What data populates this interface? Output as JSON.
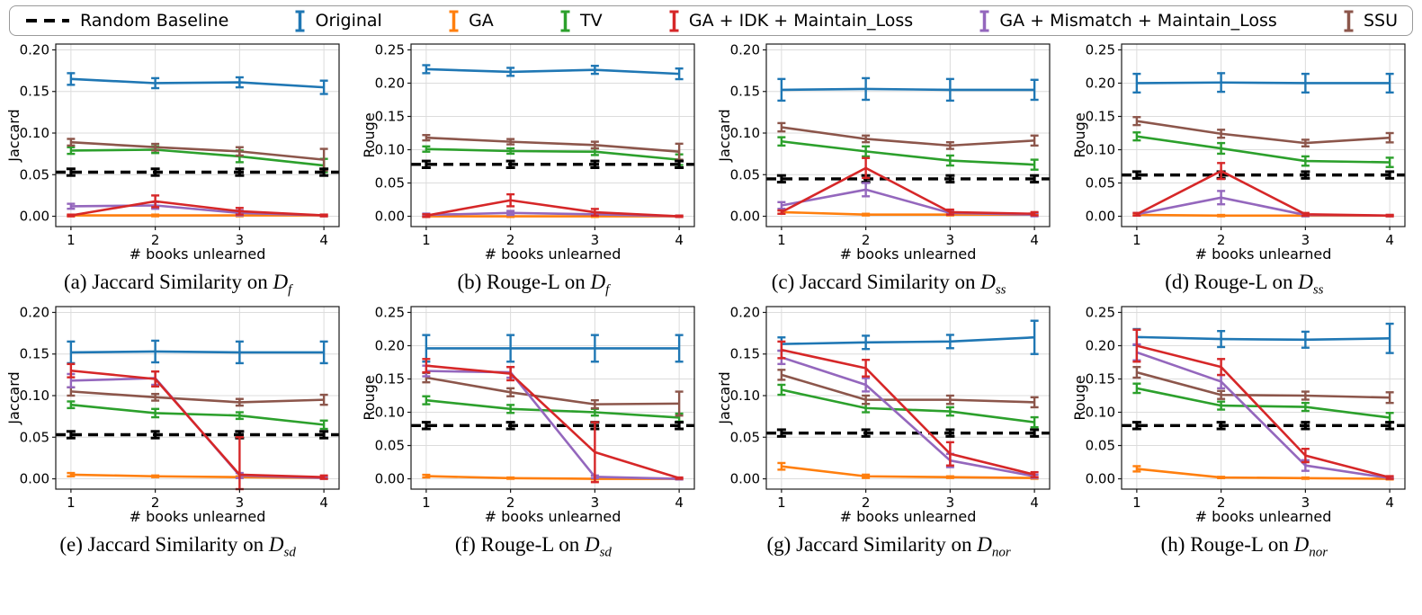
{
  "legend": {
    "items": [
      {
        "label": "Random Baseline",
        "color": "#000000",
        "marker": "dashed-line"
      },
      {
        "label": "Original",
        "color": "#1f77b4",
        "marker": "errorbar"
      },
      {
        "label": "GA",
        "color": "#ff7f0e",
        "marker": "errorbar"
      },
      {
        "label": "TV",
        "color": "#2ca02c",
        "marker": "errorbar"
      },
      {
        "label": "GA + IDK + Maintain_Loss",
        "color": "#d62728",
        "marker": "errorbar"
      },
      {
        "label": "GA + Mismatch + Maintain_Loss",
        "color": "#9467bd",
        "marker": "errorbar"
      },
      {
        "label": "SSU",
        "color": "#8c564b",
        "marker": "errorbar"
      }
    ]
  },
  "chart_data": [
    {
      "type": "line",
      "id": "a",
      "caption_prefix": "(a) Jaccard Similarity on ",
      "caption_var": "D",
      "caption_sub": "f",
      "ylabel": "Jaccard",
      "xlabel": "# books unlearned",
      "x": [
        1,
        2,
        3,
        4
      ],
      "ylim": [
        0,
        0.2
      ],
      "yticks": [
        0,
        0.05,
        0.1,
        0.15,
        0.2
      ],
      "series": [
        {
          "name": "Original",
          "values": [
            0.165,
            0.16,
            0.161,
            0.155
          ],
          "err": [
            0.007,
            0.006,
            0.006,
            0.008
          ]
        },
        {
          "name": "GA",
          "values": [
            0.001,
            0.001,
            0.001,
            0.001
          ],
          "err": [
            0.001,
            0.001,
            0.001,
            0.001
          ]
        },
        {
          "name": "TV",
          "values": [
            0.079,
            0.08,
            0.072,
            0.061
          ],
          "err": [
            0.004,
            0.004,
            0.007,
            0.008
          ]
        },
        {
          "name": "SSU",
          "values": [
            0.089,
            0.083,
            0.078,
            0.068
          ],
          "err": [
            0.004,
            0.004,
            0.005,
            0.013
          ]
        },
        {
          "name": "Random Baseline",
          "dashed": true,
          "values": [
            0.053,
            0.053,
            0.053,
            0.053
          ],
          "err": [
            0.004,
            0.004,
            0.004,
            0.004
          ]
        },
        {
          "name": "GA + Mismatch + Maintain_Loss",
          "values": [
            0.012,
            0.013,
            0.004,
            0.001
          ],
          "err": [
            0.003,
            0.004,
            0.003,
            0.001
          ]
        },
        {
          "name": "GA + IDK + Maintain_Loss",
          "values": [
            0.001,
            0.018,
            0.006,
            0.001
          ],
          "err": [
            0.001,
            0.007,
            0.004,
            0.001
          ]
        }
      ]
    },
    {
      "type": "line",
      "id": "b",
      "caption_prefix": "(b) Rouge-L on ",
      "caption_var": "D",
      "caption_sub": "f",
      "ylabel": "Rouge",
      "xlabel": "# books unlearned",
      "x": [
        1,
        2,
        3,
        4
      ],
      "ylim": [
        0,
        0.25
      ],
      "yticks": [
        0,
        0.05,
        0.1,
        0.15,
        0.2,
        0.25
      ],
      "series": [
        {
          "name": "Original",
          "values": [
            0.221,
            0.217,
            0.22,
            0.214
          ],
          "err": [
            0.006,
            0.006,
            0.006,
            0.008
          ]
        },
        {
          "name": "GA",
          "values": [
            0.0,
            0.0,
            0.0,
            0.0
          ],
          "err": [
            0.001,
            0.001,
            0.001,
            0.001
          ]
        },
        {
          "name": "TV",
          "values": [
            0.101,
            0.098,
            0.097,
            0.085
          ],
          "err": [
            0.004,
            0.004,
            0.005,
            0.008
          ]
        },
        {
          "name": "SSU",
          "values": [
            0.118,
            0.112,
            0.107,
            0.097
          ],
          "err": [
            0.004,
            0.004,
            0.005,
            0.012
          ]
        },
        {
          "name": "Random Baseline",
          "dashed": true,
          "values": [
            0.078,
            0.078,
            0.078,
            0.078
          ],
          "err": [
            0.005,
            0.005,
            0.005,
            0.005
          ]
        },
        {
          "name": "GA + Mismatch + Maintain_Loss",
          "values": [
            0.002,
            0.005,
            0.003,
            0.0
          ],
          "err": [
            0.002,
            0.003,
            0.002,
            0.001
          ]
        },
        {
          "name": "GA + IDK + Maintain_Loss",
          "values": [
            0.001,
            0.024,
            0.006,
            0.0
          ],
          "err": [
            0.002,
            0.009,
            0.005,
            0.001
          ]
        }
      ]
    },
    {
      "type": "line",
      "id": "c",
      "caption_prefix": "(c) Jaccard Similarity on ",
      "caption_var": "D",
      "caption_sub": "ss",
      "ylabel": "Jaccard",
      "xlabel": "# books unlearned",
      "x": [
        1,
        2,
        3,
        4
      ],
      "ylim": [
        0,
        0.2
      ],
      "yticks": [
        0,
        0.05,
        0.1,
        0.15,
        0.2
      ],
      "series": [
        {
          "name": "Original",
          "values": [
            0.152,
            0.153,
            0.152,
            0.152
          ],
          "err": [
            0.013,
            0.013,
            0.013,
            0.012
          ]
        },
        {
          "name": "GA",
          "values": [
            0.005,
            0.002,
            0.002,
            0.002
          ],
          "err": [
            0.002,
            0.001,
            0.001,
            0.001
          ]
        },
        {
          "name": "TV",
          "values": [
            0.09,
            0.078,
            0.067,
            0.062
          ],
          "err": [
            0.005,
            0.006,
            0.006,
            0.006
          ]
        },
        {
          "name": "SSU",
          "values": [
            0.107,
            0.093,
            0.085,
            0.091
          ],
          "err": [
            0.005,
            0.004,
            0.004,
            0.006
          ]
        },
        {
          "name": "Random Baseline",
          "dashed": true,
          "values": [
            0.045,
            0.045,
            0.045,
            0.045
          ],
          "err": [
            0.004,
            0.004,
            0.004,
            0.004
          ]
        },
        {
          "name": "GA + Mismatch + Maintain_Loss",
          "values": [
            0.013,
            0.032,
            0.004,
            0.002
          ],
          "err": [
            0.004,
            0.008,
            0.002,
            0.002
          ]
        },
        {
          "name": "GA + IDK + Maintain_Loss",
          "values": [
            0.005,
            0.058,
            0.005,
            0.003
          ],
          "err": [
            0.002,
            0.012,
            0.003,
            0.002
          ]
        }
      ]
    },
    {
      "type": "line",
      "id": "d",
      "caption_prefix": "(d) Rouge-L on ",
      "caption_var": "D",
      "caption_sub": "ss",
      "ylabel": "Rouge",
      "xlabel": "# books unlearned",
      "x": [
        1,
        2,
        3,
        4
      ],
      "ylim": [
        0,
        0.25
      ],
      "yticks": [
        0,
        0.05,
        0.1,
        0.15,
        0.2,
        0.25
      ],
      "series": [
        {
          "name": "Original",
          "values": [
            0.2,
            0.201,
            0.2,
            0.2
          ],
          "err": [
            0.014,
            0.014,
            0.014,
            0.014
          ]
        },
        {
          "name": "GA",
          "values": [
            0.002,
            0.001,
            0.001,
            0.001
          ],
          "err": [
            0.001,
            0.001,
            0.001,
            0.001
          ]
        },
        {
          "name": "TV",
          "values": [
            0.12,
            0.102,
            0.083,
            0.081
          ],
          "err": [
            0.006,
            0.008,
            0.007,
            0.007
          ]
        },
        {
          "name": "SSU",
          "values": [
            0.143,
            0.124,
            0.11,
            0.118
          ],
          "err": [
            0.006,
            0.006,
            0.005,
            0.007
          ]
        },
        {
          "name": "Random Baseline",
          "dashed": true,
          "values": [
            0.062,
            0.062,
            0.062,
            0.062
          ],
          "err": [
            0.005,
            0.005,
            0.005,
            0.005
          ]
        },
        {
          "name": "GA + Mismatch + Maintain_Loss",
          "values": [
            0.003,
            0.028,
            0.002,
            0.001
          ],
          "err": [
            0.002,
            0.01,
            0.002,
            0.001
          ]
        },
        {
          "name": "GA + IDK + Maintain_Loss",
          "values": [
            0.003,
            0.068,
            0.003,
            0.001
          ],
          "err": [
            0.002,
            0.012,
            0.002,
            0.001
          ]
        }
      ]
    },
    {
      "type": "line",
      "id": "e",
      "caption_prefix": "(e) Jaccard Similarity on ",
      "caption_var": "D",
      "caption_sub": "sd",
      "ylabel": "Jaccard",
      "xlabel": "# books unlearned",
      "x": [
        1,
        2,
        3,
        4
      ],
      "ylim": [
        0,
        0.2
      ],
      "yticks": [
        0,
        0.05,
        0.1,
        0.15,
        0.2
      ],
      "series": [
        {
          "name": "Original",
          "values": [
            0.152,
            0.153,
            0.152,
            0.152
          ],
          "err": [
            0.013,
            0.013,
            0.013,
            0.013
          ]
        },
        {
          "name": "GA",
          "values": [
            0.005,
            0.003,
            0.002,
            0.001
          ],
          "err": [
            0.002,
            0.001,
            0.001,
            0.001
          ]
        },
        {
          "name": "TV",
          "values": [
            0.089,
            0.079,
            0.076,
            0.065
          ],
          "err": [
            0.004,
            0.005,
            0.004,
            0.005
          ]
        },
        {
          "name": "SSU",
          "values": [
            0.105,
            0.098,
            0.092,
            0.095
          ],
          "err": [
            0.005,
            0.004,
            0.004,
            0.006
          ]
        },
        {
          "name": "Random Baseline",
          "dashed": true,
          "values": [
            0.053,
            0.053,
            0.053,
            0.053
          ],
          "err": [
            0.004,
            0.004,
            0.004,
            0.004
          ]
        },
        {
          "name": "GA + Mismatch + Maintain_Loss",
          "values": [
            0.118,
            0.121,
            0.004,
            0.001
          ],
          "err": [
            0.008,
            0.008,
            0.003,
            0.001
          ]
        },
        {
          "name": "GA + IDK + Maintain_Loss",
          "values": [
            0.13,
            0.12,
            0.005,
            0.002
          ],
          "err": [
            0.008,
            0.009,
            0.045,
            0.002
          ]
        }
      ]
    },
    {
      "type": "line",
      "id": "f",
      "caption_prefix": "(f) Rouge-L on ",
      "caption_var": "D",
      "caption_sub": "sd",
      "ylabel": "Rouge",
      "xlabel": "# books unlearned",
      "x": [
        1,
        2,
        3,
        4
      ],
      "ylim": [
        0,
        0.25
      ],
      "yticks": [
        0,
        0.05,
        0.1,
        0.15,
        0.2,
        0.25
      ],
      "series": [
        {
          "name": "Original",
          "values": [
            0.196,
            0.196,
            0.196,
            0.196
          ],
          "err": [
            0.02,
            0.02,
            0.02,
            0.02
          ]
        },
        {
          "name": "GA",
          "values": [
            0.004,
            0.001,
            0.0,
            0.0
          ],
          "err": [
            0.002,
            0.001,
            0.001,
            0.001
          ]
        },
        {
          "name": "TV",
          "values": [
            0.118,
            0.105,
            0.1,
            0.092
          ],
          "err": [
            0.006,
            0.006,
            0.005,
            0.006
          ]
        },
        {
          "name": "SSU",
          "values": [
            0.152,
            0.13,
            0.112,
            0.113
          ],
          "err": [
            0.007,
            0.006,
            0.006,
            0.018
          ]
        },
        {
          "name": "Random Baseline",
          "dashed": true,
          "values": [
            0.08,
            0.08,
            0.08,
            0.08
          ],
          "err": [
            0.005,
            0.005,
            0.005,
            0.005
          ]
        },
        {
          "name": "GA + Mismatch + Maintain_Loss",
          "values": [
            0.162,
            0.16,
            0.003,
            0.0
          ],
          "err": [
            0.008,
            0.008,
            0.002,
            0.001
          ]
        },
        {
          "name": "GA + IDK + Maintain_Loss",
          "values": [
            0.17,
            0.158,
            0.04,
            0.001
          ],
          "err": [
            0.01,
            0.01,
            0.045,
            0.001
          ]
        }
      ]
    },
    {
      "type": "line",
      "id": "g",
      "caption_prefix": "(g) Jaccard Similarity on ",
      "caption_var": "D",
      "caption_sub": "nor",
      "ylabel": "Jaccard",
      "xlabel": "# books unlearned",
      "x": [
        1,
        2,
        3,
        4
      ],
      "ylim": [
        0,
        0.2
      ],
      "yticks": [
        0,
        0.05,
        0.1,
        0.15,
        0.2
      ],
      "series": [
        {
          "name": "Original",
          "values": [
            0.162,
            0.164,
            0.165,
            0.17
          ],
          "err": [
            0.008,
            0.008,
            0.008,
            0.02
          ]
        },
        {
          "name": "GA",
          "values": [
            0.015,
            0.003,
            0.002,
            0.001
          ],
          "err": [
            0.004,
            0.002,
            0.001,
            0.001
          ]
        },
        {
          "name": "TV",
          "values": [
            0.107,
            0.085,
            0.081,
            0.068
          ],
          "err": [
            0.006,
            0.005,
            0.005,
            0.006
          ]
        },
        {
          "name": "SSU",
          "values": [
            0.125,
            0.095,
            0.095,
            0.092
          ],
          "err": [
            0.006,
            0.005,
            0.005,
            0.006
          ]
        },
        {
          "name": "Random Baseline",
          "dashed": true,
          "values": [
            0.055,
            0.055,
            0.055,
            0.055
          ],
          "err": [
            0.004,
            0.004,
            0.004,
            0.004
          ]
        },
        {
          "name": "GA + Mismatch + Maintain_Loss",
          "values": [
            0.146,
            0.113,
            0.022,
            0.003
          ],
          "err": [
            0.008,
            0.008,
            0.008,
            0.002
          ]
        },
        {
          "name": "GA + IDK + Maintain_Loss",
          "values": [
            0.155,
            0.133,
            0.03,
            0.005
          ],
          "err": [
            0.01,
            0.01,
            0.014,
            0.003
          ]
        }
      ]
    },
    {
      "type": "line",
      "id": "h",
      "caption_prefix": "(h) Rouge-L on ",
      "caption_var": "D",
      "caption_sub": "nor",
      "ylabel": "Rouge",
      "xlabel": "# books unlearned",
      "x": [
        1,
        2,
        3,
        4
      ],
      "ylim": [
        0,
        0.25
      ],
      "yticks": [
        0,
        0.05,
        0.1,
        0.15,
        0.2,
        0.25
      ],
      "series": [
        {
          "name": "Original",
          "values": [
            0.213,
            0.21,
            0.209,
            0.211
          ],
          "err": [
            0.012,
            0.012,
            0.012,
            0.022
          ]
        },
        {
          "name": "GA",
          "values": [
            0.015,
            0.002,
            0.001,
            0.0
          ],
          "err": [
            0.004,
            0.001,
            0.001,
            0.001
          ]
        },
        {
          "name": "TV",
          "values": [
            0.136,
            0.11,
            0.108,
            0.092
          ],
          "err": [
            0.007,
            0.006,
            0.006,
            0.007
          ]
        },
        {
          "name": "SSU",
          "values": [
            0.16,
            0.126,
            0.125,
            0.122
          ],
          "err": [
            0.008,
            0.006,
            0.006,
            0.008
          ]
        },
        {
          "name": "Random Baseline",
          "dashed": true,
          "values": [
            0.08,
            0.08,
            0.08,
            0.08
          ],
          "err": [
            0.005,
            0.005,
            0.005,
            0.005
          ]
        },
        {
          "name": "GA + Mismatch + Maintain_Loss",
          "values": [
            0.19,
            0.146,
            0.02,
            0.001
          ],
          "err": [
            0.012,
            0.01,
            0.008,
            0.001
          ]
        },
        {
          "name": "GA + IDK + Maintain_Loss",
          "values": [
            0.2,
            0.168,
            0.035,
            0.002
          ],
          "err": [
            0.024,
            0.012,
            0.01,
            0.002
          ]
        }
      ]
    }
  ]
}
